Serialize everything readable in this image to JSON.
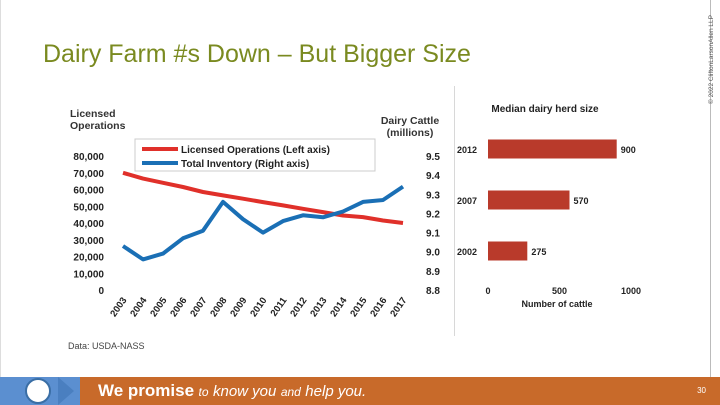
{
  "slide": {
    "title": "Dairy Farm #s Down – But Bigger Size",
    "copyright": "© 2022 CliftonLarsonAllen LLP",
    "source": "Data: USDA-NASS",
    "page_number": "30"
  },
  "footer": {
    "promise": "We promise",
    "to": "to",
    "know_you": "know you",
    "and": "and",
    "help_you": "help you."
  },
  "colors": {
    "title": "#7a8a20",
    "red_series": "#e0302a",
    "blue_series": "#1a6fb5",
    "bar": "#b93a2b",
    "footer": "#c86a2a"
  },
  "chart_data": [
    {
      "type": "line",
      "left_axis_title": [
        "Licensed",
        "Operations"
      ],
      "right_axis_title": [
        "Dairy Cattle",
        "(millions)"
      ],
      "x": [
        "2003",
        "2004",
        "2005",
        "2006",
        "2007",
        "2008",
        "2009",
        "2010",
        "2011",
        "2012",
        "2013",
        "2014",
        "2015",
        "2016",
        "2017"
      ],
      "left_ticks": [
        "80,000",
        "70,000",
        "60,000",
        "50,000",
        "40,000",
        "30,000",
        "20,000",
        "10,000",
        "0"
      ],
      "right_ticks": [
        "9.5",
        "9.4",
        "9.3",
        "9.2",
        "9.1",
        "9.0",
        "8.9",
        "8.8"
      ],
      "ylim_left": [
        0,
        80000
      ],
      "ylim_right": [
        8.8,
        9.5
      ],
      "series": [
        {
          "name": "Licensed Operations (Left axis)",
          "axis": "left",
          "color": "#e0302a",
          "values": [
            70000,
            66500,
            64000,
            61500,
            58500,
            56500,
            54500,
            52500,
            50500,
            48500,
            46500,
            44500,
            43500,
            41500,
            40000
          ]
        },
        {
          "name": "Total Inventory (Right axis)",
          "axis": "right",
          "color": "#1a6fb5",
          "values": [
            9.03,
            8.96,
            8.99,
            9.07,
            9.11,
            9.26,
            9.17,
            9.1,
            9.16,
            9.19,
            9.18,
            9.21,
            9.26,
            9.27,
            9.34
          ]
        }
      ]
    },
    {
      "type": "bar",
      "title": "Median dairy herd size",
      "xlabel": "Number of cattle",
      "categories": [
        "2012",
        "2007",
        "2002"
      ],
      "values": [
        900,
        570,
        275
      ],
      "labels": [
        "900",
        "570",
        "275"
      ],
      "x_ticks": [
        "0",
        "500",
        "1000"
      ],
      "xlim": [
        0,
        1000
      ]
    }
  ]
}
